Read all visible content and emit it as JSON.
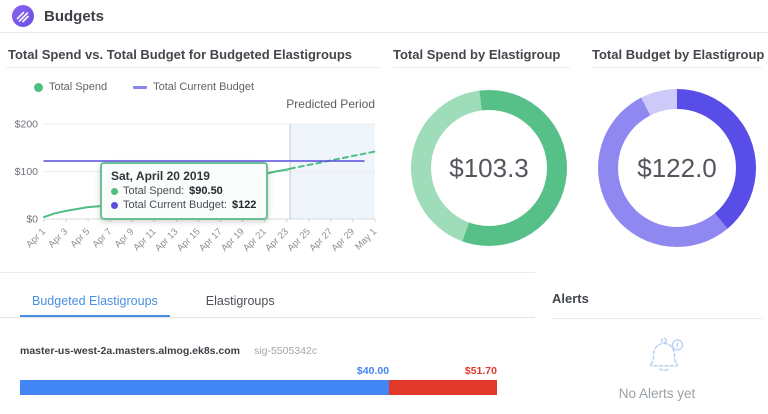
{
  "header": {
    "title": "Budgets"
  },
  "spend_vs_budget": {
    "title": "Total Spend vs. Total Budget for Budgeted Elastigroups",
    "legend": [
      {
        "label": "Total Spend",
        "color": "#4FBE83"
      },
      {
        "label": "Total Current Budget",
        "color": "#8A85EE"
      }
    ],
    "predicted_label": "Predicted Period",
    "tooltip": {
      "title": "Sat, April 20 2019",
      "rows": [
        {
          "label": "Total Spend:",
          "value": "$90.50",
          "bullet": "#4FBE83"
        },
        {
          "label": "Total Current Budget:",
          "value": "$122",
          "bullet": "#5A50E0"
        }
      ]
    }
  },
  "spend_donut": {
    "title": "Total Spend by Elastigroup",
    "center": "$103.3"
  },
  "budget_donut": {
    "title": "Total Budget by Elastigroup",
    "center": "$122.0"
  },
  "tabs": [
    {
      "label": "Budgeted Elastigroups",
      "active": true
    },
    {
      "label": "Elastigroups",
      "active": false
    }
  ],
  "budgeted_row": {
    "name": "master-us-west-2a.masters.almog.ek8s.com",
    "id": "sig-5505342c",
    "spend_label": "$40.00",
    "total_label": "$51.70",
    "spend_color": "#4285F4",
    "over_color": "#E2382C"
  },
  "alerts": {
    "title": "Alerts",
    "empty": "No Alerts yet"
  },
  "chart_data": [
    {
      "type": "line",
      "title": "Total Spend vs. Total Budget for Budgeted Elastigroups",
      "xlim": [
        1,
        31
      ],
      "ylim": [
        0,
        200
      ],
      "x_ticks": [
        {
          "day": 1,
          "label": "Apr 1"
        },
        {
          "day": 3,
          "label": "Apr 3"
        },
        {
          "day": 5,
          "label": "Apr 5"
        },
        {
          "day": 7,
          "label": "Apr 7"
        },
        {
          "day": 9,
          "label": "Apr 9"
        },
        {
          "day": 11,
          "label": "Apr 11"
        },
        {
          "day": 13,
          "label": "Apr 13"
        },
        {
          "day": 15,
          "label": "Apr 15"
        },
        {
          "day": 17,
          "label": "Apr 17"
        },
        {
          "day": 19,
          "label": "Apr 19"
        },
        {
          "day": 21,
          "label": "Apr 21"
        },
        {
          "day": 23,
          "label": "Apr 23"
        },
        {
          "day": 25,
          "label": "Apr 25"
        },
        {
          "day": 27,
          "label": "Apr 27"
        },
        {
          "day": 29,
          "label": "Apr 29"
        },
        {
          "day": 31,
          "label": "May 1"
        }
      ],
      "y_gridlines": [
        {
          "value": 0,
          "label": "$0"
        },
        {
          "value": 100,
          "label": "$100"
        },
        {
          "value": 200,
          "label": "$200"
        }
      ],
      "predicted_period_start_day": 23.3,
      "series": [
        {
          "name": "Total Spend",
          "style": "solid",
          "color": "#4FBE83",
          "points": [
            [
              1,
              4
            ],
            [
              2,
              12
            ],
            [
              3,
              17
            ],
            [
              4,
              21
            ],
            [
              5,
              25
            ],
            [
              6,
              27
            ],
            [
              7,
              30
            ],
            [
              8,
              34
            ],
            [
              9,
              38
            ],
            [
              10,
              42
            ],
            [
              11,
              47
            ],
            [
              12,
              52
            ],
            [
              13,
              57
            ],
            [
              14,
              61
            ],
            [
              15,
              66
            ],
            [
              16,
              70
            ],
            [
              17,
              75
            ],
            [
              18,
              80
            ],
            [
              19,
              85
            ],
            [
              20,
              90.5
            ],
            [
              21,
              95
            ],
            [
              22,
              100
            ],
            [
              23,
              104
            ],
            [
              23.3,
              106
            ]
          ]
        },
        {
          "name": "Total Spend (predicted)",
          "style": "dashed",
          "color": "#4FBE83",
          "points": [
            [
              23.3,
              106
            ],
            [
              31,
              142
            ]
          ]
        },
        {
          "name": "Total Current Budget",
          "style": "solid",
          "color": "#564CE0",
          "points": [
            [
              1,
              122
            ],
            [
              30,
              122
            ]
          ]
        }
      ],
      "highlight_point": {
        "day": 20,
        "value": 90.5
      }
    },
    {
      "type": "donut",
      "title": "Total Spend by Elastigroup",
      "center_label": "$103.3",
      "total": 103.3,
      "segments": [
        {
          "from": 0,
          "to": 200,
          "color": "#57C088"
        },
        {
          "from": 200,
          "to": 353,
          "color": "#9FDCB9"
        },
        {
          "from": 353,
          "to": 360,
          "color": "#57C088"
        }
      ]
    },
    {
      "type": "donut",
      "title": "Total Budget by Elastigroup",
      "center_label": "$122.0",
      "total": 122.0,
      "segments": [
        {
          "from": 0,
          "to": 140,
          "color": "#584DE6"
        },
        {
          "from": 140,
          "to": 333,
          "color": "#8F88F0"
        },
        {
          "from": 333,
          "to": 360,
          "color": "#CDC9F8"
        }
      ]
    },
    {
      "type": "stacked-bar",
      "row": "master-us-west-2a.masters.almog.ek8s.com",
      "total": 51.7,
      "segments": [
        {
          "label": "$40.00",
          "value": 40,
          "color": "#4285F4"
        },
        {
          "label": "$51.70",
          "value": 11.7,
          "color": "#E2382C"
        }
      ]
    }
  ]
}
